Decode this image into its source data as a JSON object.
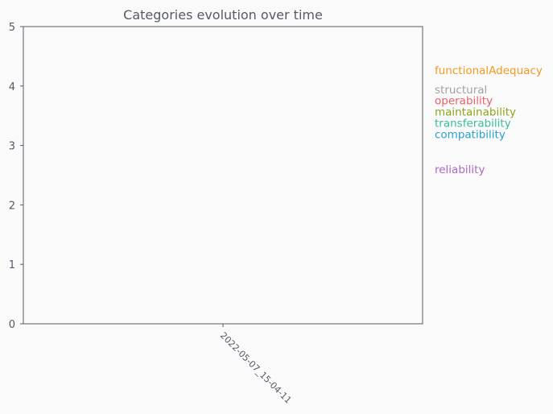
{
  "chart_data": {
    "type": "line",
    "title": "Categories evolution over time",
    "xlabel": "",
    "ylabel": "",
    "x": [
      "2022-05-07_15-04-11"
    ],
    "ylim": [
      0,
      5
    ],
    "yticks": [
      0,
      1,
      2,
      3,
      4,
      5
    ],
    "grid": false,
    "legend": "right",
    "series": [
      {
        "name": "functionalAdequacy",
        "color": "#f29a1f",
        "values": [
          4.27
        ]
      },
      {
        "name": "structural",
        "color": "#a3a3a3",
        "values": [
          3.94
        ]
      },
      {
        "name": "operability",
        "color": "#e8606b",
        "values": [
          3.76
        ]
      },
      {
        "name": "maintainability",
        "color": "#8aa61a",
        "values": [
          3.57
        ]
      },
      {
        "name": "transferability",
        "color": "#3dbb9b",
        "values": [
          3.38
        ]
      },
      {
        "name": "compatibility",
        "color": "#2a9fce",
        "values": [
          3.19
        ]
      },
      {
        "name": "reliability",
        "color": "#a86cc1",
        "values": [
          2.6
        ]
      }
    ],
    "axis_color": "#555a66"
  }
}
